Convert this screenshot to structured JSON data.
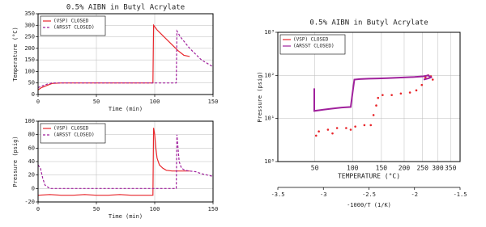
{
  "chart_data": [
    {
      "type": "line",
      "title": "0.5% AIBN in Butyl Acrylate",
      "xlabel": "Time (min)",
      "ylabel": "Temperature (°C)",
      "xlim": [
        0,
        150
      ],
      "xticks": [
        0,
        50,
        100,
        150
      ],
      "ylim": [
        0,
        350
      ],
      "yticks": [
        0,
        50,
        100,
        150,
        200,
        250,
        300,
        350
      ],
      "grid": true,
      "series": [
        {
          "name": "(VSP) CLOSED",
          "color": "#e8262b",
          "dashed": false,
          "x": [
            0,
            3,
            8,
            12,
            20,
            40,
            60,
            80,
            97,
            98.5,
            99,
            102,
            106,
            110,
            115,
            120,
            125,
            130
          ],
          "values": [
            20,
            30,
            40,
            48,
            50,
            50,
            50,
            50,
            50,
            50,
            300,
            280,
            260,
            240,
            215,
            190,
            170,
            165
          ]
        },
        {
          "name": "(ARSST CLOSED)",
          "color": "#a0219c",
          "dashed": true,
          "x": [
            0,
            4,
            8,
            12,
            20,
            40,
            60,
            80,
            100,
            117,
            118.5,
            119,
            122,
            126,
            130,
            135,
            140,
            145,
            150
          ],
          "values": [
            30,
            38,
            45,
            50,
            50,
            50,
            50,
            50,
            50,
            50,
            50,
            275,
            250,
            225,
            200,
            175,
            150,
            135,
            120
          ]
        }
      ]
    },
    {
      "type": "line",
      "xlabel": "Time (min)",
      "ylabel": "Pressure (psig)",
      "xlim": [
        0,
        150
      ],
      "xticks": [
        0,
        50,
        100,
        150
      ],
      "ylim": [
        -20,
        100
      ],
      "yticks": [
        -20,
        0,
        20,
        40,
        60,
        80,
        100
      ],
      "grid": true,
      "series": [
        {
          "name": "(VSP) CLOSED",
          "color": "#e8262b",
          "dashed": false,
          "x": [
            0,
            10,
            20,
            30,
            40,
            50,
            60,
            70,
            80,
            90,
            97,
            98.5,
            99,
            100,
            101,
            102,
            104,
            107,
            110,
            115,
            120,
            125,
            130
          ],
          "values": [
            -10,
            -9,
            -10,
            -10,
            -9,
            -10,
            -10,
            -9,
            -10,
            -10,
            -10,
            -10,
            90,
            80,
            60,
            45,
            35,
            30,
            27,
            26,
            26,
            26,
            26
          ]
        },
        {
          "name": "(ARSST CLOSED)",
          "color": "#a0219c",
          "dashed": true,
          "x": [
            0,
            2,
            4,
            6,
            10,
            30,
            60,
            90,
            117,
            118.5,
            119,
            120,
            121,
            123,
            126,
            130,
            135,
            140,
            145,
            150
          ],
          "values": [
            35,
            30,
            15,
            5,
            0,
            0,
            0,
            0,
            0,
            0,
            80,
            60,
            40,
            30,
            27,
            26,
            25,
            22,
            20,
            18
          ]
        }
      ]
    },
    {
      "type": "line",
      "title": "0.5% AIBN in Butyl Acrylate",
      "xlabel": "-1000/T (1/K)",
      "ylabel": "Pressure (psig)",
      "x2label": "TEMPERATURE (°C)",
      "x2ticks": [
        50,
        100,
        150,
        200,
        250,
        300,
        350
      ],
      "xlim": [
        -3.5,
        -1.5
      ],
      "xticks": [
        -3.5,
        -3,
        -2.5,
        -2,
        -1.5
      ],
      "log_y": true,
      "grid": true,
      "ylim": [
        1,
        1000
      ],
      "yticks": [
        {
          "value": 1,
          "label": "10⁰"
        },
        {
          "value": 10,
          "label": "10¹"
        },
        {
          "value": 100,
          "label": "10²"
        },
        {
          "value": 1000,
          "label": "10³"
        }
      ],
      "series": [
        {
          "name": "(VSP) CLOSED",
          "color": "#e8262b",
          "markers": true,
          "x": [
            -3.05,
            -2.95,
            -2.85,
            -2.75,
            -2.65,
            -2.55,
            -2.48,
            -2.45,
            -2.42,
            -2.4,
            -2.35,
            -2.25,
            -2.15,
            -2.05,
            -1.98,
            -1.92,
            -1.88,
            -1.85,
            -1.82,
            -1.8,
            -3.08,
            -2.9,
            -2.7
          ],
          "values": [
            5,
            5.5,
            6,
            6,
            6.5,
            7,
            7,
            12,
            20,
            30,
            35,
            35,
            38,
            40,
            45,
            60,
            90,
            100,
            95,
            80,
            4,
            4.5,
            5.5
          ]
        },
        {
          "name": "(ARSST CLOSED)",
          "color": "#a0219c",
          "markers": false,
          "x": [
            -3.1,
            -3.1,
            -3.1,
            -3.0,
            -2.9,
            -2.8,
            -2.7,
            -2.68,
            -2.66,
            -2.6,
            -2.5,
            -2.4,
            -2.3,
            -2.2,
            -2.1,
            -2.0,
            -1.9,
            -1.85,
            -1.82,
            -1.85,
            -1.9
          ],
          "values": [
            50,
            25,
            15,
            16,
            17,
            18,
            18.5,
            40,
            80,
            82,
            84,
            85,
            86,
            88,
            90,
            92,
            95,
            100,
            90,
            85,
            80
          ]
        }
      ]
    }
  ]
}
